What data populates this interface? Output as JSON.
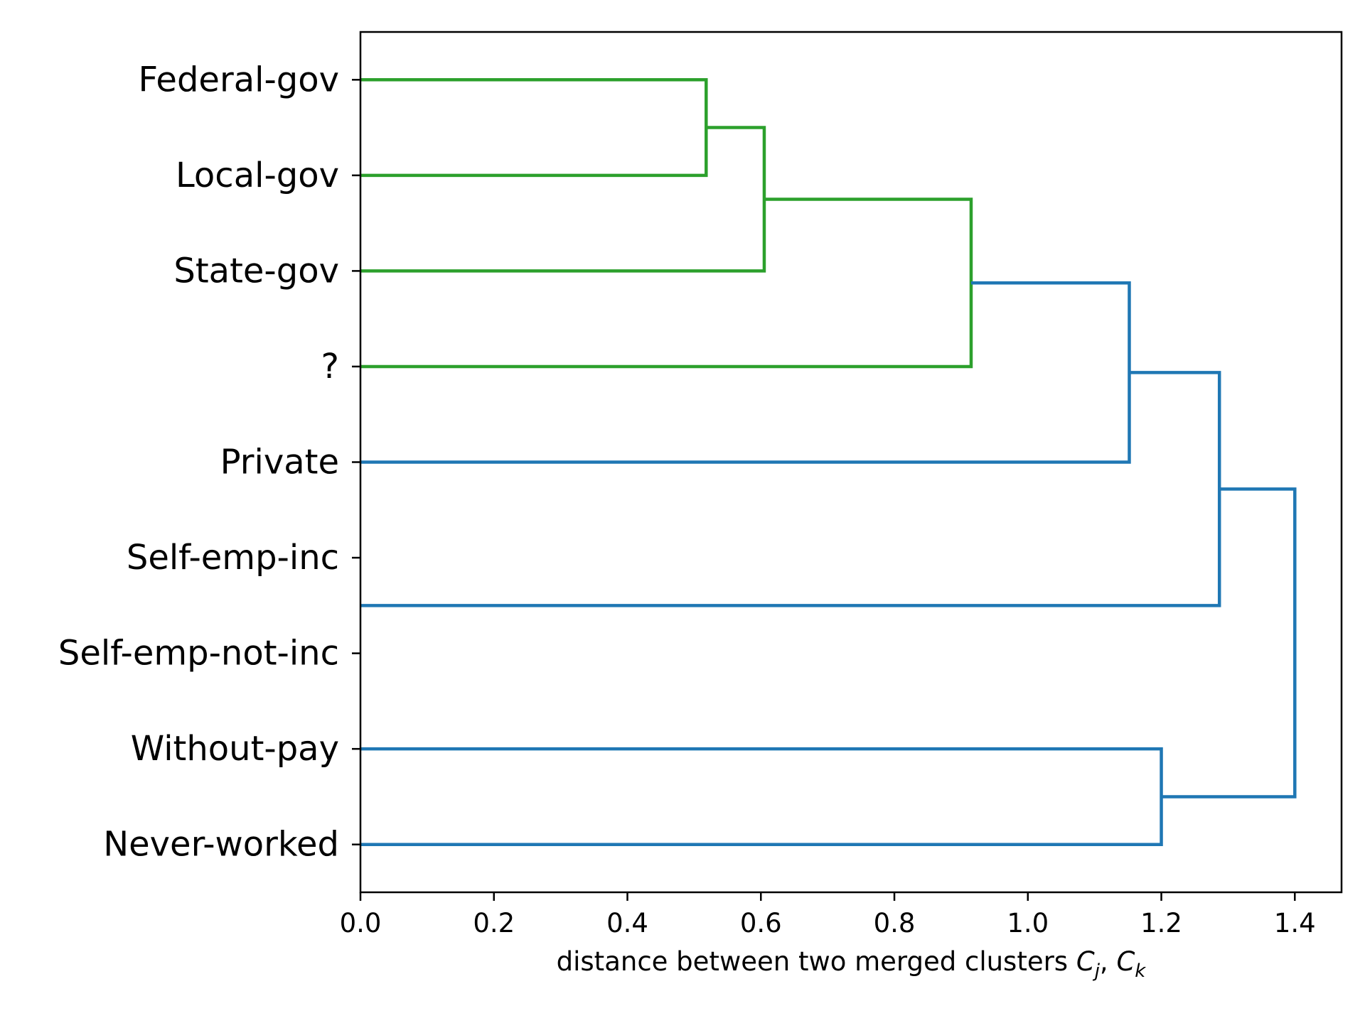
{
  "chart_data": {
    "type": "dendrogram",
    "orientation": "horizontal",
    "leaves": [
      "Federal-gov",
      "Local-gov",
      "State-gov",
      "?",
      "Private",
      "Self-emp-inc",
      "Self-emp-not-inc",
      "Without-pay",
      "Never-worked"
    ],
    "merges": [
      {
        "left": "Federal-gov",
        "right": "Local-gov",
        "distance": 0.518,
        "color": "#2ca02c"
      },
      {
        "left": "Federal-gov+Local-gov",
        "right": "State-gov",
        "distance": 0.605,
        "color": "#2ca02c"
      },
      {
        "left": "Federal-gov+Local-gov+State-gov",
        "right": "?",
        "distance": 0.915,
        "color": "#2ca02c"
      },
      {
        "left": "Self-emp-inc",
        "right": "Self-emp-not-inc",
        "distance": 0.0,
        "color": "#ff7f0e"
      },
      {
        "left": "gov-cluster",
        "right": "Private",
        "distance": 1.152,
        "color": "#1f77b4"
      },
      {
        "left": "gov-private-cluster",
        "right": "Self-emp-cluster",
        "distance": 1.287,
        "color": "#1f77b4"
      },
      {
        "left": "Without-pay",
        "right": "Never-worked",
        "distance": 1.2,
        "color": "#1f77b4"
      },
      {
        "left": "main-cluster",
        "right": "Without-pay+Never-worked",
        "distance": 1.4,
        "color": "#1f77b4"
      }
    ],
    "xlabel_prefix": "distance between two merged clusters ",
    "xlabel_math": {
      "c1": "C",
      "s1": "j",
      "sep": ", ",
      "c2": "C",
      "s2": "k"
    },
    "xlim": [
      0,
      1.47
    ],
    "xticks": [
      0.0,
      0.2,
      0.4,
      0.6,
      0.8,
      1.0,
      1.2,
      1.4
    ],
    "xtick_labels": [
      "0.0",
      "0.2",
      "0.4",
      "0.6",
      "0.8",
      "1.0",
      "1.2",
      "1.4"
    ],
    "colors": {
      "cluster_green": "#2ca02c",
      "cluster_orange": "#ff7f0e",
      "above_threshold": "#1f77b4"
    },
    "grid": false
  }
}
